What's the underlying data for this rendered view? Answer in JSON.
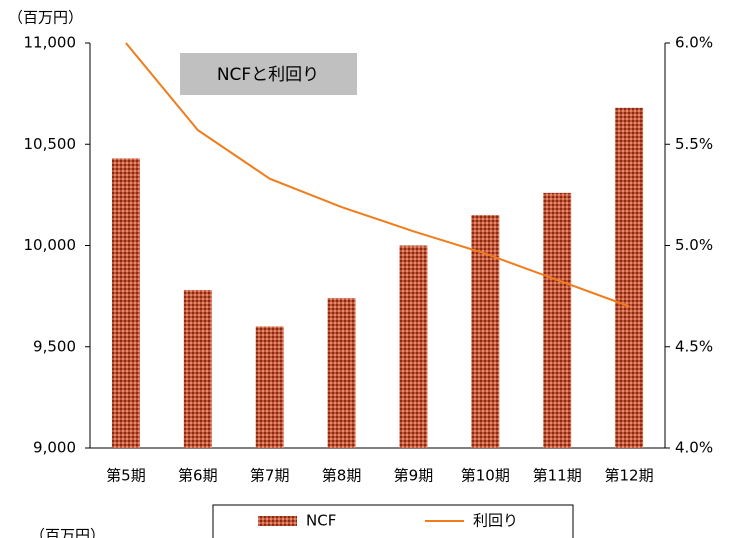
{
  "chart_data": {
    "type": "bar_line",
    "title": "NCFと利回り",
    "y_axis_label": "（百万円）",
    "cut_off_label": "（百万円）",
    "categories": [
      "第5期",
      "第6期",
      "第7期",
      "第8期",
      "第9期",
      "第10期",
      "第11期",
      "第12期"
    ],
    "series": [
      {
        "name": "NCF",
        "type": "bar",
        "color": "#b5432a",
        "values": [
          10430,
          9780,
          9600,
          9740,
          10000,
          10150,
          10260,
          10680
        ]
      },
      {
        "name": "利回り",
        "type": "line",
        "axis": "y2",
        "color": "#f07c1c",
        "values": [
          6.0,
          5.57,
          5.33,
          5.19,
          5.07,
          4.96,
          4.83,
          4.7
        ]
      }
    ],
    "ylim": [
      9000,
      11000
    ],
    "yticks": [
      {
        "value": 9000,
        "label": "9,000"
      },
      {
        "value": 9500,
        "label": "9,500"
      },
      {
        "value": 10000,
        "label": "10,000"
      },
      {
        "value": 10500,
        "label": "10,500"
      },
      {
        "value": 11000,
        "label": "11,000"
      }
    ],
    "y2lim": [
      4.0,
      6.0
    ],
    "y2ticks": [
      {
        "value": 4.0,
        "label": "4.0%"
      },
      {
        "value": 4.5,
        "label": "4.5%"
      },
      {
        "value": 5.0,
        "label": "5.0%"
      },
      {
        "value": 5.5,
        "label": "5.5%"
      },
      {
        "value": 6.0,
        "label": "6.0%"
      }
    ],
    "grid": false,
    "legend": "bottom"
  }
}
